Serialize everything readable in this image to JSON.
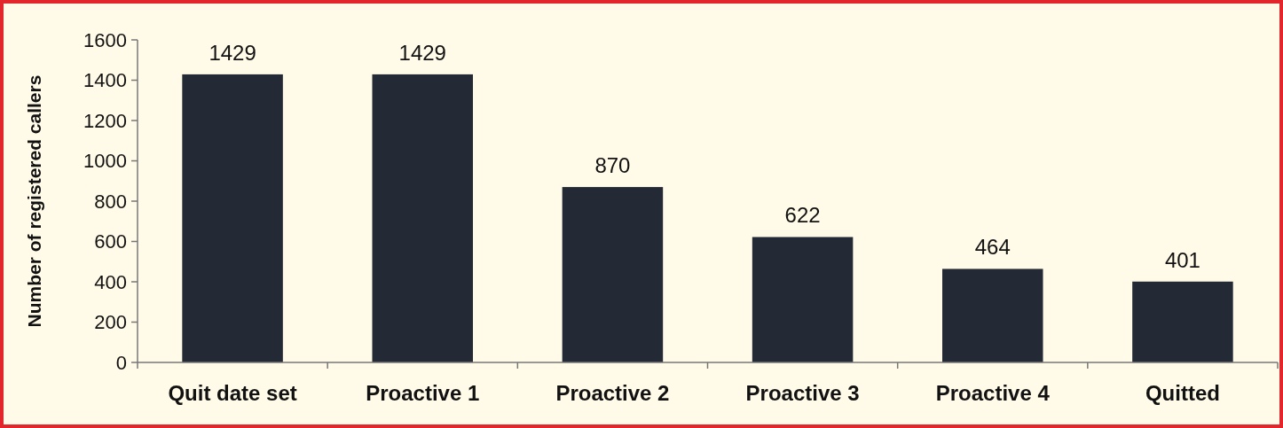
{
  "chart_data": {
    "type": "bar",
    "ylabel": "Number of registered callers",
    "categories": [
      "Quit date set",
      "Proactive 1",
      "Proactive 2",
      "Proactive 3",
      "Proactive 4",
      "Quitted"
    ],
    "values": [
      1429,
      1429,
      870,
      622,
      464,
      401
    ],
    "color": "#232a35",
    "ylim": [
      0,
      1600
    ],
    "yticks": [
      0,
      200,
      400,
      600,
      800,
      1000,
      1200,
      1400,
      1600
    ],
    "data_labels": true
  }
}
